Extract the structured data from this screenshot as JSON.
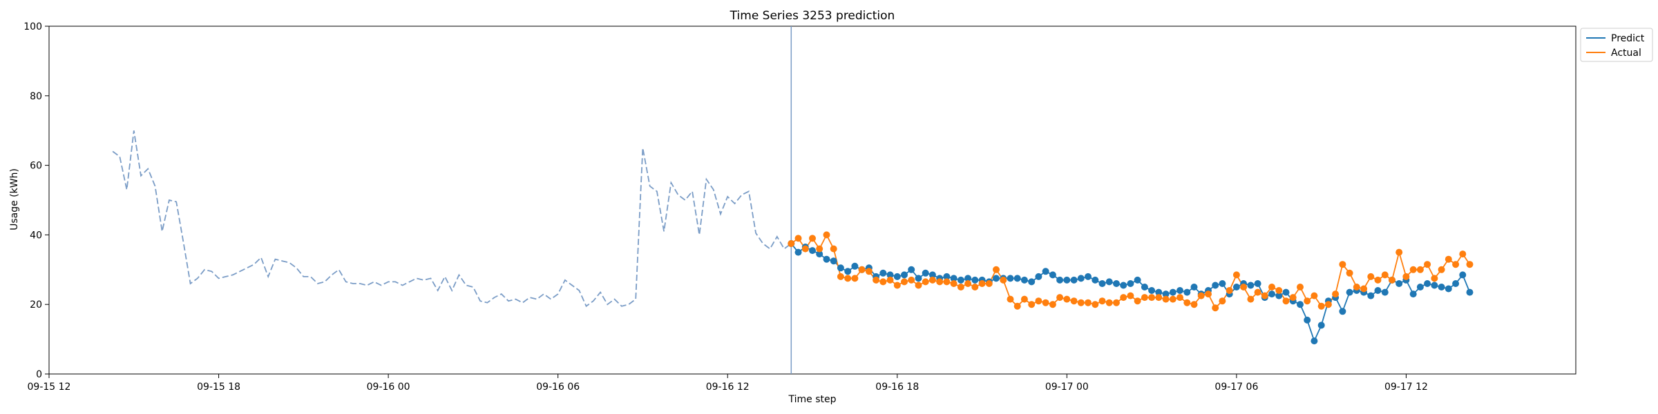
{
  "chart_data": {
    "type": "line",
    "title": "Time Series 3253 prediction",
    "xlabel": "Time step",
    "ylabel": "Usage (kWh)",
    "ylim": [
      0,
      100
    ],
    "yticks": [
      0,
      20,
      40,
      60,
      80,
      100
    ],
    "xlim": [
      "2019-09-15 12:00",
      "2019-09-17 18:00"
    ],
    "xticks": [
      {
        "t": "2019-09-15 12:00",
        "label": "09-15 12"
      },
      {
        "t": "2019-09-15 18:00",
        "label": "09-15 18"
      },
      {
        "t": "2019-09-16 00:00",
        "label": "09-16 00"
      },
      {
        "t": "2019-09-16 06:00",
        "label": "09-16 06"
      },
      {
        "t": "2019-09-16 12:00",
        "label": "09-16 12"
      },
      {
        "t": "2019-09-16 18:00",
        "label": "09-16 18"
      },
      {
        "t": "2019-09-17 00:00",
        "label": "09-17 00"
      },
      {
        "t": "2019-09-17 06:00",
        "label": "09-17 06"
      },
      {
        "t": "2019-09-17 12:00",
        "label": "09-17 12"
      }
    ],
    "legend": {
      "position": "top-right",
      "items": [
        "Predict",
        "Actual"
      ]
    },
    "split_time": "2019-09-16 14:15",
    "history": {
      "start": "2019-09-15 14:15",
      "interval_minutes": 15,
      "color": "#7a9cc6",
      "values": [
        64,
        62.5,
        53,
        70,
        57,
        59,
        54,
        41,
        50,
        49.5,
        38,
        26,
        27.5,
        30,
        29.5,
        27.5,
        28,
        28.5,
        29.5,
        30.5,
        31.5,
        33.5,
        28,
        33,
        32.5,
        32,
        30.5,
        28,
        28,
        26,
        26.5,
        28.5,
        30,
        26.5,
        26,
        26,
        25.5,
        26.5,
        25.5,
        26.5,
        26.5,
        25.5,
        26.5,
        27.5,
        27,
        27.5,
        24,
        28,
        24,
        28.5,
        25.5,
        25,
        21,
        20.5,
        22,
        23,
        21,
        21.5,
        20.5,
        22,
        21.5,
        23,
        21.5,
        23,
        27,
        25.5,
        24,
        19.5,
        21,
        23.5,
        20,
        21.5,
        19.5,
        20,
        21.5,
        65,
        54,
        52.5,
        41,
        55,
        51.5,
        50,
        52.5,
        40,
        56,
        53,
        46,
        51,
        49,
        51.5,
        52.5,
        40.5,
        37.5,
        36,
        39.5,
        36,
        37.5
      ]
    },
    "series": [
      {
        "name": "Predict",
        "color": "#1f77b4",
        "start": "2019-09-16 14:15",
        "interval_minutes": 15,
        "values": [
          37.5,
          35,
          36.5,
          35.5,
          34.5,
          33,
          32.5,
          30.5,
          29.5,
          31,
          30,
          30.5,
          28,
          29,
          28.5,
          28,
          28.5,
          30,
          27.5,
          29,
          28.5,
          27.5,
          28,
          27.5,
          27,
          27.5,
          27,
          27,
          26.5,
          27.5,
          27.5,
          27.5,
          27.5,
          27,
          26.5,
          28,
          29.5,
          28.5,
          27,
          27,
          27,
          27.5,
          28,
          27,
          26,
          26.5,
          26,
          25.5,
          26,
          27,
          25,
          24,
          23.5,
          23,
          23.5,
          24,
          23.5,
          25,
          23,
          24,
          25.5,
          26,
          23,
          25,
          26,
          25.5,
          26,
          22,
          23,
          22.5,
          23.5,
          21,
          20,
          15.5,
          9.5,
          14,
          21,
          22,
          18,
          23.5,
          24,
          23.5,
          22.5,
          24,
          23.5,
          27,
          26,
          27,
          23,
          25,
          26,
          25.5,
          25,
          24.5,
          26,
          28.5,
          23.5
        ]
      },
      {
        "name": "Actual",
        "color": "#ff7f0e",
        "start": "2019-09-16 14:15",
        "interval_minutes": 15,
        "values": [
          37.5,
          39,
          36,
          39,
          36,
          40,
          36,
          28,
          27.5,
          27.5,
          30,
          29.5,
          27,
          26.5,
          27,
          25.5,
          26.5,
          27,
          25.5,
          26.5,
          27,
          26.5,
          26.5,
          26,
          25,
          26,
          25,
          26,
          26,
          30,
          27,
          21.5,
          19.5,
          21.5,
          20,
          21,
          20.5,
          20,
          22,
          21.5,
          21,
          20.5,
          20.5,
          20,
          21,
          20.5,
          20.5,
          22,
          22.5,
          21,
          22,
          22,
          22,
          21.5,
          21.5,
          22,
          20.5,
          20,
          22.5,
          23,
          19,
          21,
          24,
          28.5,
          25,
          21.5,
          23.5,
          22.5,
          25,
          24,
          21,
          22,
          25,
          21,
          22.5,
          19.5,
          20,
          23,
          31.5,
          29,
          25,
          24.5,
          28,
          27,
          28.5,
          27,
          35,
          28,
          30,
          30,
          31.5,
          27.5,
          30,
          33,
          31.5,
          34.5,
          31.5
        ]
      }
    ]
  }
}
